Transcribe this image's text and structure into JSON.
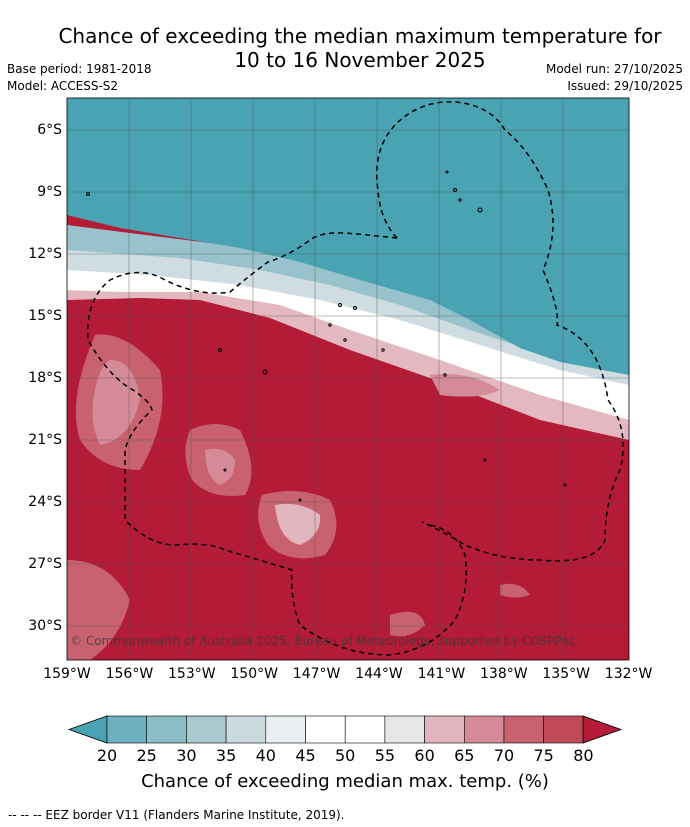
{
  "title": {
    "line1": "Chance of exceeding the median maximum temperature for",
    "line2": "10 to 16 November 2025"
  },
  "meta": {
    "base_period": "Base period: 1981-2018",
    "model": "Model: ACCESS-S2",
    "model_run": "Model run: 27/10/2025",
    "issued": "Issued: 29/10/2025"
  },
  "map": {
    "lat_labels": [
      "6°S",
      "9°S",
      "12°S",
      "15°S",
      "18°S",
      "21°S",
      "24°S",
      "27°S",
      "30°S"
    ],
    "lon_labels": [
      "159°W",
      "156°W",
      "153°W",
      "150°W",
      "147°W",
      "144°W",
      "141°W",
      "138°W",
      "135°W",
      "132°W"
    ],
    "copyright": "© Commonwealth of Australia 2025, Bureau of Meteorology, supported by COSPPac"
  },
  "colorbar": {
    "ticks": [
      "20",
      "25",
      "30",
      "35",
      "40",
      "45",
      "50",
      "55",
      "60",
      "65",
      "70",
      "75",
      "80"
    ],
    "colors": [
      "#49a3b3",
      "#6eb0bd",
      "#8bbdc7",
      "#a9c9d0",
      "#ccdadf",
      "#e9eef0",
      "#ffffff",
      "#ffffff",
      "#e6e6e6",
      "#e2b6be",
      "#d58b97",
      "#c8626f",
      "#bf4a57",
      "#b31b37"
    ],
    "title": "Chance of exceeding median max. temp. (%)"
  },
  "footnote": "--  --  -- EEZ border V11 (Flanders Marine Institute, 2019)."
}
